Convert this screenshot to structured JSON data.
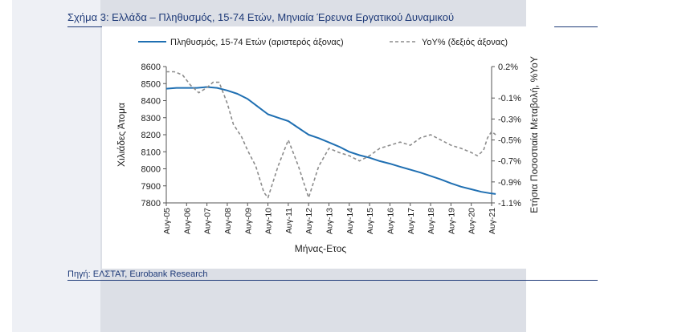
{
  "figure": {
    "title": "Σχήμα 3: Ελλάδα – Πληθυσμός, 15-74 Ετών, Μηνιαία Έρευνα Εργατικού Δυναμικού",
    "source": "Πηγή: ΕΛΣΤΑΤ, Eurobank Research"
  },
  "chart_data": {
    "type": "line",
    "title": "",
    "xlabel": "Μήνας-Ετος",
    "ylabel": "Χιλιάδες Άτομα",
    "y2label": "Ετήσια Ποσοστιαία Μεταβολή, %YoY",
    "categories": [
      "Αυγ-05",
      "Αυγ-06",
      "Αυγ-07",
      "Αυγ-08",
      "Αυγ-09",
      "Αυγ-10",
      "Αυγ-11",
      "Αυγ-12",
      "Αυγ-13",
      "Αυγ-14",
      "Αυγ-15",
      "Αυγ-16",
      "Αυγ-17",
      "Αυγ-18",
      "Αυγ-19",
      "Αυγ-20",
      "Αυγ-21"
    ],
    "ylim": [
      7800,
      8600
    ],
    "yticks": [
      "7800",
      "7900",
      "8000",
      "8100",
      "8200",
      "8300",
      "8400",
      "8500",
      "8600"
    ],
    "y2lim": [
      -1.1,
      0.2
    ],
    "y2ticks": [
      "-1.1%",
      "-0.9%",
      "-0.7%",
      "-0.5%",
      "-0.3%",
      "-0.1%",
      "0.2%"
    ],
    "legend_position": "top",
    "grid": false,
    "series": [
      {
        "name": "Πληθυσμός, 15-74 Ετών (αριστερός άξονας)",
        "axis": "left",
        "style": "solid",
        "color": "#1f6fb2",
        "x": [
          0,
          0.5,
          1,
          1.5,
          2,
          2.5,
          3,
          3.5,
          4,
          4.5,
          5,
          5.5,
          6,
          6.5,
          7,
          7.5,
          8,
          8.5,
          9,
          9.5,
          10,
          10.5,
          11,
          11.5,
          12,
          12.5,
          13,
          13.5,
          14,
          14.5,
          15,
          15.5,
          16,
          16.2
        ],
        "values": [
          8470,
          8475,
          8475,
          8475,
          8480,
          8475,
          8460,
          8440,
          8410,
          8365,
          8320,
          8300,
          8280,
          8240,
          8200,
          8180,
          8155,
          8130,
          8100,
          8080,
          8065,
          8045,
          8030,
          8012,
          7995,
          7978,
          7958,
          7938,
          7915,
          7895,
          7880,
          7865,
          7855,
          7852
        ]
      },
      {
        "name": "YoY% (δεξιός άξονας)",
        "axis": "right",
        "style": "dashed",
        "color": "#8c8c8c",
        "x": [
          0,
          0.4,
          0.8,
          1.2,
          1.6,
          2,
          2.3,
          2.6,
          3,
          3.3,
          3.7,
          4,
          4.4,
          4.8,
          5,
          5.5,
          6,
          6.5,
          7,
          7.5,
          8,
          8.5,
          9,
          9.5,
          10,
          10.5,
          11,
          11.5,
          12,
          12.5,
          13,
          13.5,
          14,
          14.5,
          15,
          15.3,
          15.6,
          15.8,
          16,
          16.2
        ],
        "values": [
          0.15,
          0.15,
          0.12,
          0.02,
          -0.05,
          0.0,
          0.05,
          0.05,
          -0.15,
          -0.35,
          -0.47,
          -0.6,
          -0.75,
          -1.0,
          -1.05,
          -0.75,
          -0.5,
          -0.75,
          -1.05,
          -0.75,
          -0.58,
          -0.62,
          -0.65,
          -0.7,
          -0.65,
          -0.58,
          -0.55,
          -0.52,
          -0.55,
          -0.48,
          -0.45,
          -0.5,
          -0.55,
          -0.58,
          -0.62,
          -0.65,
          -0.6,
          -0.48,
          -0.42,
          -0.45
        ]
      }
    ]
  }
}
